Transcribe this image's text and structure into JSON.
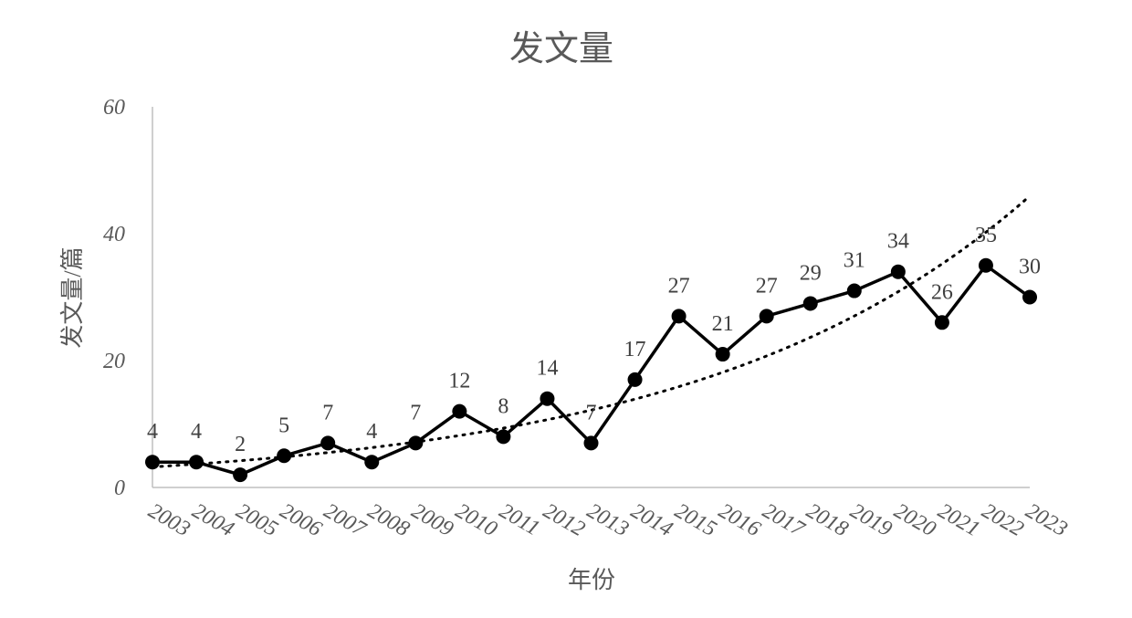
{
  "chart_data": {
    "type": "line",
    "title": "发文量",
    "x_label": "年份",
    "y_label": "发文量/篇",
    "categories": [
      "2003",
      "2004",
      "2005",
      "2006",
      "2007",
      "2008",
      "2009",
      "2010",
      "2011",
      "2012",
      "2013",
      "2014",
      "2015",
      "2016",
      "2017",
      "2018",
      "2019",
      "2020",
      "2021",
      "2022",
      "2023"
    ],
    "series": [
      {
        "name": "发文量",
        "color": "#000000",
        "values": [
          4,
          4,
          2,
          5,
          7,
          4,
          7,
          12,
          8,
          14,
          7,
          17,
          27,
          21,
          27,
          29,
          31,
          34,
          26,
          35,
          30
        ]
      }
    ],
    "ylim": [
      0,
      60
    ],
    "yticks": [
      0,
      20,
      40,
      60
    ],
    "grid": false,
    "trendline": "exponential",
    "data_labels": true
  }
}
